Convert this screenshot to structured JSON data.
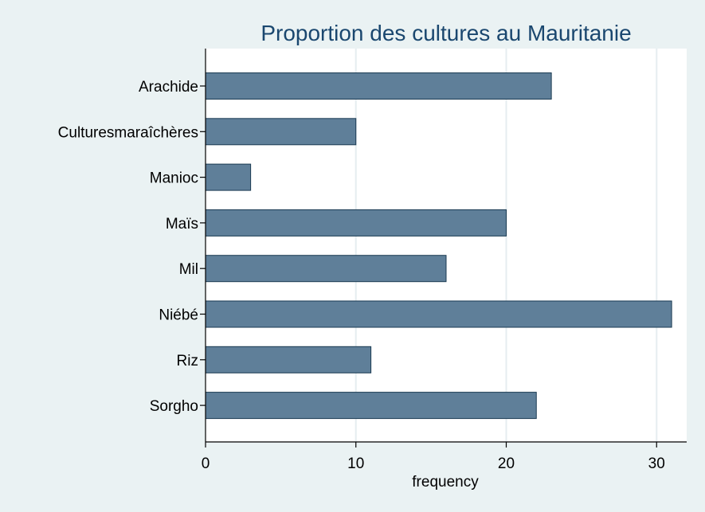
{
  "chart_data": {
    "type": "bar",
    "orientation": "horizontal",
    "title": "Proportion des cultures au Mauritanie",
    "xlabel": "frequency",
    "ylabel": "",
    "categories": [
      "Arachide",
      "Culturesmaraîchères",
      "Manioc",
      "Maïs",
      "Mil",
      "Niébé",
      "Riz",
      "Sorgho"
    ],
    "values": [
      23,
      10,
      3,
      20,
      16,
      31,
      11,
      22
    ],
    "xlim": [
      0,
      32
    ],
    "xticks": [
      0,
      10,
      20,
      30
    ],
    "grid": true,
    "colors": {
      "bar_fill": "#5f7f99",
      "bar_stroke": "#1a3a52",
      "plot_bg": "#ffffff",
      "outer_bg": "#eaf2f3",
      "grid": "#e6edf0",
      "title": "#1a476f"
    }
  }
}
